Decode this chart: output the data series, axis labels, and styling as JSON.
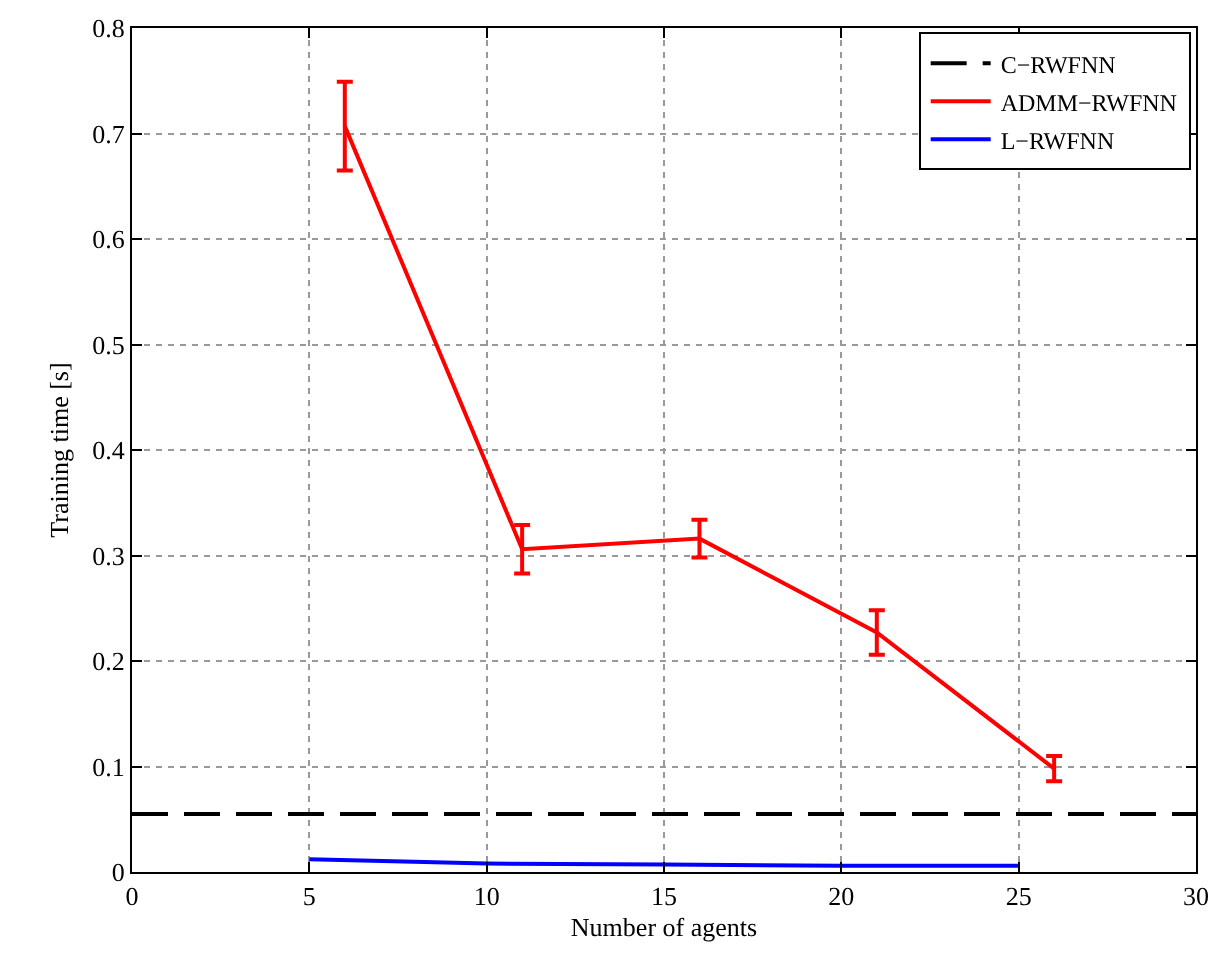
{
  "chart_data": {
    "type": "line",
    "xlabel": "Number of agents",
    "ylabel": "Training time [s]",
    "xlim": [
      0,
      30
    ],
    "xticks": [
      0,
      5,
      10,
      15,
      20,
      25,
      30
    ],
    "ylim": [
      0,
      0.8
    ],
    "yticks": [
      0,
      0.1,
      0.2,
      0.3,
      0.4,
      0.5,
      0.6,
      0.7,
      0.8
    ],
    "grid": true,
    "legend": "top right",
    "marker": "none",
    "series": [
      {
        "name": "C−RWFNN",
        "color": "#000000",
        "line_style": "dashed",
        "x": [
          0,
          30
        ],
        "values": [
          0.055,
          0.055
        ]
      },
      {
        "name": "ADMM−RWFNN",
        "color": "#ff0000",
        "line_style": "solid",
        "x": [
          6,
          11,
          16,
          21,
          26
        ],
        "values": [
          0.707,
          0.306,
          0.316,
          0.227,
          0.098
        ],
        "errors": [
          0.042,
          0.023,
          0.018,
          0.021,
          0.012
        ]
      },
      {
        "name": "L−RWFNN",
        "color": "#0000ff",
        "line_style": "solid",
        "x": [
          5,
          10,
          15,
          20,
          25
        ],
        "values": [
          0.012,
          0.008,
          0.007,
          0.006,
          0.006
        ]
      }
    ]
  }
}
